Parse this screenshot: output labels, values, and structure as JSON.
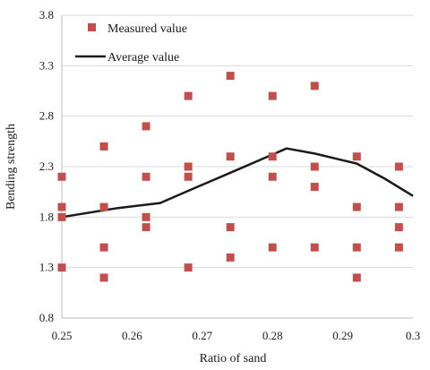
{
  "chart_data": {
    "type": "scatter",
    "xlabel": "Ratio of sand",
    "ylabel": "Bending strength",
    "xlim": [
      0.25,
      0.3
    ],
    "ylim": [
      0.8,
      3.8
    ],
    "x_ticks": [
      "0.25",
      "0.26",
      "0.27",
      "0.28",
      "0.29",
      "0.3"
    ],
    "y_ticks": [
      "0.8",
      "1.3",
      "1.8",
      "2.3",
      "2.8",
      "3.3",
      "3.8"
    ],
    "grid": "horizontal",
    "legend_position": "top-left",
    "series": [
      {
        "name": "Measured value",
        "kind": "markers",
        "color": "#c0504d",
        "x": [
          0.25,
          0.25,
          0.25,
          0.25,
          0.256,
          0.256,
          0.256,
          0.256,
          0.262,
          0.262,
          0.262,
          0.262,
          0.268,
          0.268,
          0.268,
          0.268,
          0.274,
          0.274,
          0.274,
          0.274,
          0.28,
          0.28,
          0.28,
          0.28,
          0.286,
          0.286,
          0.286,
          0.286,
          0.292,
          0.292,
          0.292,
          0.292,
          0.298,
          0.298,
          0.298,
          0.298
        ],
        "y": [
          2.2,
          1.9,
          1.8,
          1.3,
          2.5,
          1.9,
          1.5,
          1.2,
          2.7,
          2.2,
          1.8,
          1.7,
          3.0,
          2.3,
          2.2,
          1.3,
          3.2,
          2.4,
          1.7,
          1.4,
          3.0,
          2.4,
          2.2,
          1.5,
          3.1,
          2.3,
          2.1,
          1.5,
          2.4,
          1.9,
          1.5,
          1.2,
          2.3,
          1.9,
          1.7,
          1.5
        ]
      },
      {
        "name": "Average value",
        "kind": "line",
        "color": "#1a1a1a",
        "x": [
          0.25,
          0.258,
          0.264,
          0.268,
          0.274,
          0.28,
          0.282,
          0.286,
          0.292,
          0.296,
          0.3
        ],
        "y": [
          1.8,
          1.89,
          1.94,
          2.06,
          2.24,
          2.42,
          2.48,
          2.43,
          2.33,
          2.18,
          2.01
        ]
      }
    ]
  }
}
